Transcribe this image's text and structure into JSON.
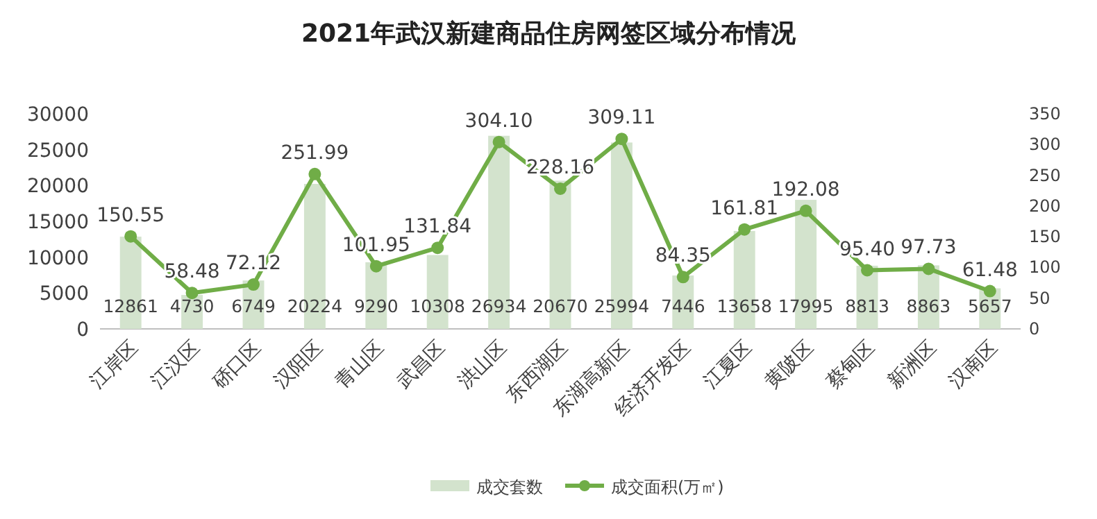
{
  "chart_data": {
    "type": "bar",
    "title": "2021年武汉新建商品住房网签区域分布情况",
    "categories": [
      "江岸区",
      "江汉区",
      "硚口区",
      "汉阳区",
      "青山区",
      "武昌区",
      "洪山区",
      "东西湖区",
      "东湖高新区",
      "经济开发区",
      "江夏区",
      "黄陂区",
      "蔡甸区",
      "新洲区",
      "汉南区"
    ],
    "series": [
      {
        "name": "成交套数",
        "color": "#d3e3cd",
        "values": [
          12861,
          4730,
          6749,
          20224,
          9290,
          10308,
          26934,
          20670,
          25994,
          7446,
          13658,
          17995,
          8813,
          8863,
          5657
        ],
        "value_labels": [
          "12861",
          "4730",
          "6749",
          "20224",
          "9290",
          "10308",
          "26934",
          "20670",
          "25994",
          "7446",
          "13658",
          "17995",
          "8813",
          "8863",
          "5657"
        ]
      },
      {
        "name": "成交面积(万㎡)",
        "type": "line",
        "axis": "y2",
        "color": "#70ad47",
        "marker": "circle",
        "values": [
          150.55,
          58.48,
          72.12,
          251.99,
          101.95,
          131.84,
          304.1,
          228.16,
          309.11,
          84.35,
          161.81,
          192.08,
          95.4,
          97.73,
          61.48
        ],
        "value_labels": [
          "150.55",
          "58.48",
          "72.12",
          "251.99",
          "101.95",
          "131.84",
          "304.10",
          "228.16",
          "309.11",
          "84.35",
          "161.81",
          "192.08",
          "95.40",
          "97.73",
          "61.48"
        ]
      }
    ],
    "ylim": [
      0,
      30000
    ],
    "yticks": [
      0,
      5000,
      10000,
      15000,
      20000,
      25000,
      30000
    ],
    "y2lim": [
      0,
      350
    ],
    "y2ticks": [
      0,
      50,
      100,
      150,
      200,
      250,
      300,
      350
    ],
    "grid": false,
    "legend": "bottom"
  }
}
